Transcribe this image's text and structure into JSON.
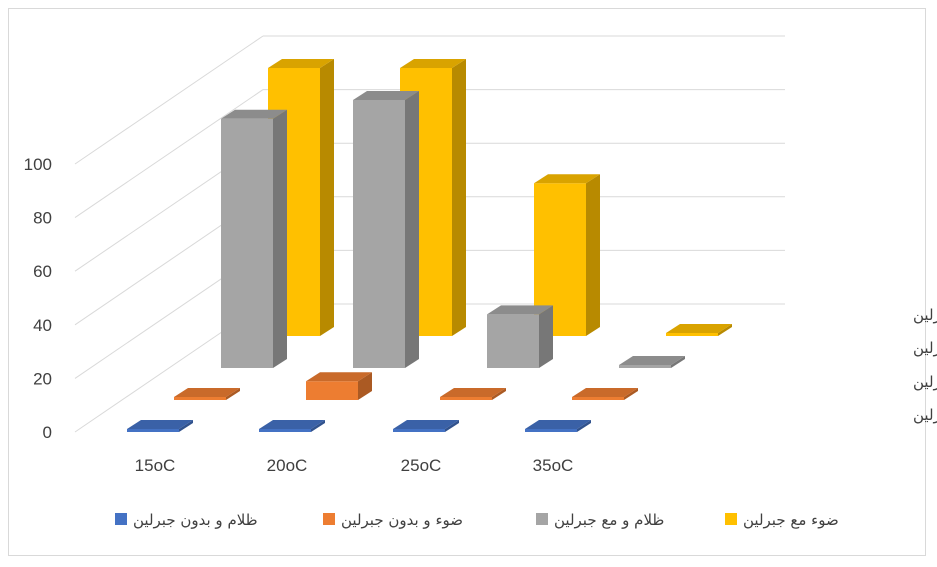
{
  "chart_data": {
    "type": "bar",
    "subtype": "3d-column",
    "title": "",
    "xlabel": "",
    "ylabel": "",
    "ylim": [
      0,
      100
    ],
    "y_ticks": [
      "0",
      "20",
      "40",
      "60",
      "80",
      "100"
    ],
    "categories": [
      "15oC",
      "20oC",
      "25oC",
      "35oC"
    ],
    "series": [
      {
        "name": "ظلام و بدون جبرلين",
        "color": "#4472C4",
        "values": [
          0,
          0,
          0,
          0
        ]
      },
      {
        "name": "ضوء و بدون جبرلين",
        "color": "#ED7D31",
        "values": [
          0,
          7,
          0,
          0
        ]
      },
      {
        "name": "ظلام و مع جبرلين",
        "color": "#A5A5A5",
        "values": [
          93,
          100,
          20,
          0
        ]
      },
      {
        "name": "ضوء مع جبرلين",
        "color": "#FFC000",
        "values": [
          100,
          100,
          57,
          0
        ]
      }
    ],
    "depth_labels": [
      "ضوء مع جبرلين",
      "ظلام و مع جبرلين",
      "ضوء و بدون جبرلين",
      "ظلام و بدون جبرلين"
    ],
    "legend_position": "bottom",
    "grid": true
  }
}
